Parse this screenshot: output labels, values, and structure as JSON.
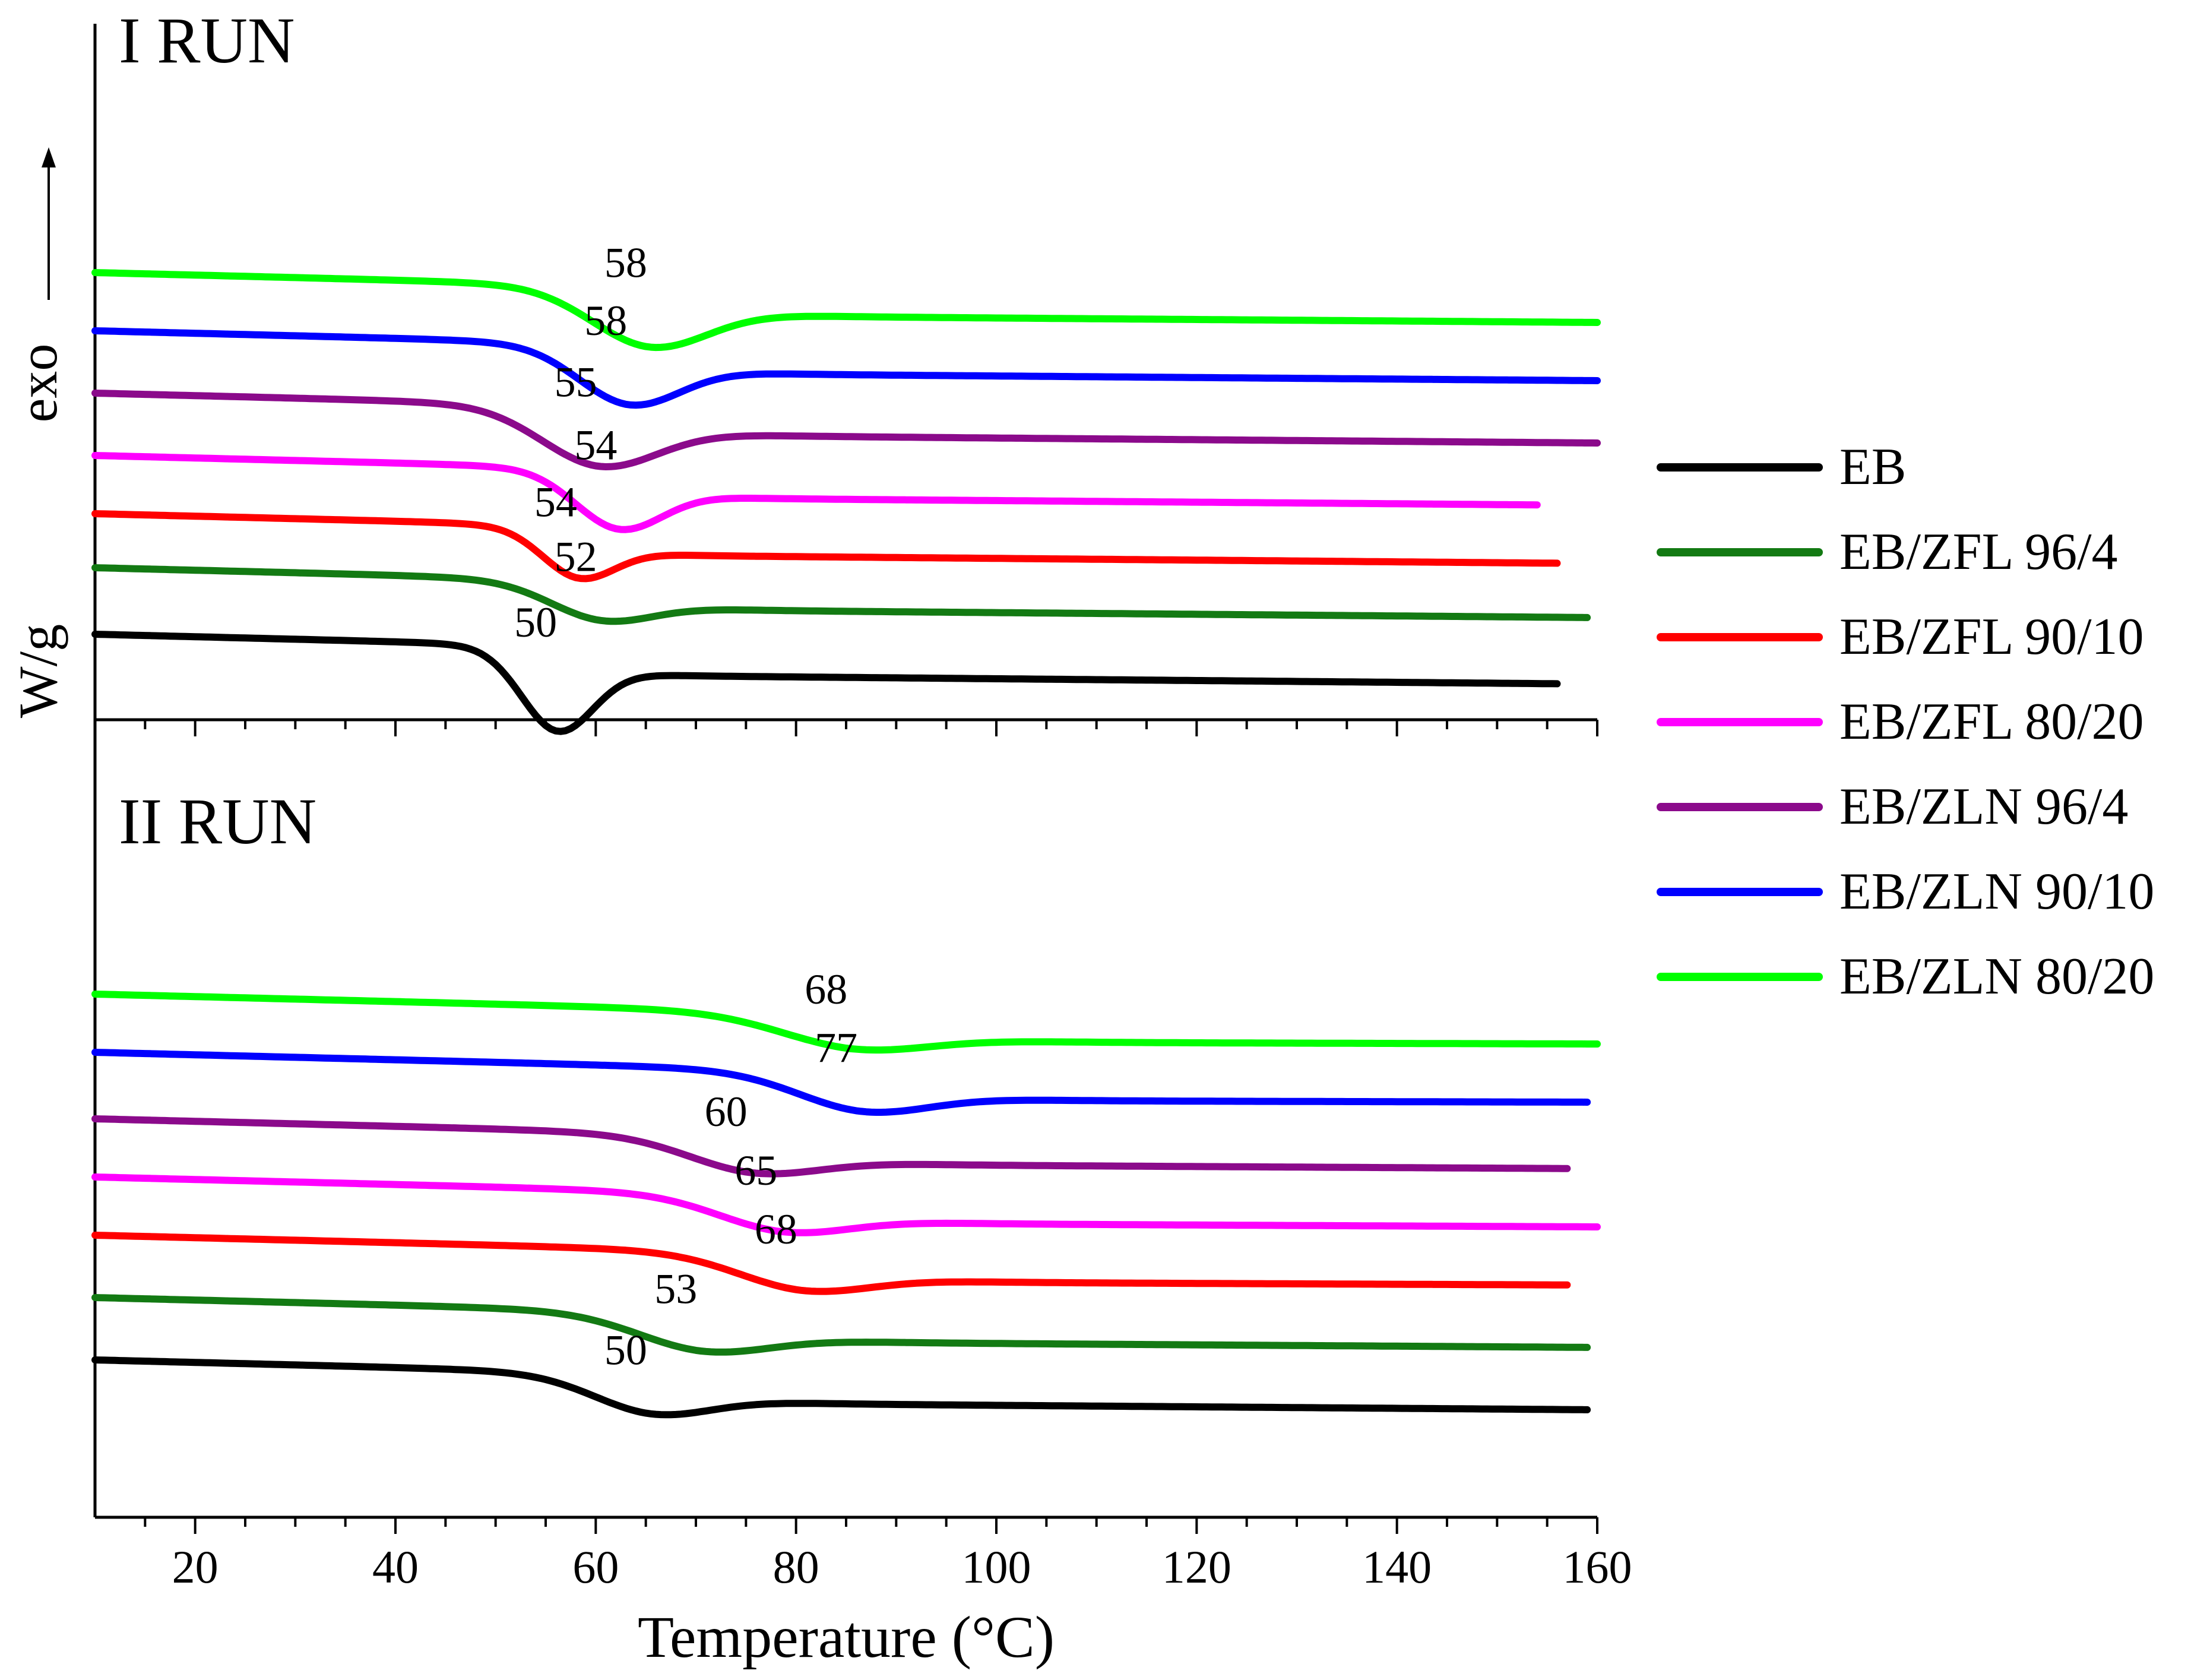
{
  "chart_data": {
    "type": "line",
    "title": "",
    "xlabel": "Temperature (°C)",
    "ylabel": "W/g",
    "exo_label": "exo",
    "xlim": [
      10,
      160
    ],
    "xticks": [
      20,
      40,
      60,
      80,
      100,
      120,
      140,
      160
    ],
    "series_names": [
      "EB",
      "EB/ZFL 96/4",
      "EB/ZFL 90/10",
      "EB/ZFL 80/20",
      "EB/ZLN 96/4",
      "EB/ZLN 90/10",
      "EB/ZLN 80/20"
    ],
    "colors": [
      "#000000",
      "#137a13",
      "#ff0000",
      "#ff00ff",
      "#8b0a8b",
      "#0000ff",
      "#00ff00"
    ],
    "panels": [
      {
        "name": "I RUN",
        "peaks": [
          "50",
          "52",
          "54",
          "54",
          "55",
          "58",
          "58"
        ],
        "peak_temps": [
          56,
          60,
          58,
          62,
          60,
          63,
          65
        ],
        "offsets": [
          -0.1,
          0.7,
          1.35,
          2.05,
          2.8,
          3.55,
          4.25
        ],
        "depths": [
          0.85,
          0.3,
          0.45,
          0.55,
          0.55,
          0.55,
          0.55
        ],
        "widths": [
          5,
          7,
          5,
          6,
          8,
          7,
          8
        ],
        "ends": [
          156,
          159,
          156,
          154,
          160,
          160,
          160
        ]
      },
      {
        "name": "II RUN",
        "peaks": [
          "50",
          "53",
          "68",
          "65",
          "60",
          "77",
          "68"
        ],
        "peak_temps": [
          65,
          70,
          80,
          78,
          75,
          86,
          85
        ],
        "offsets": [
          0.1,
          0.85,
          1.6,
          2.3,
          3.0,
          3.8,
          4.5
        ],
        "depths": [
          0.3,
          0.28,
          0.27,
          0.27,
          0.27,
          0.3,
          0.25
        ],
        "widths": [
          8,
          9,
          9,
          9,
          9,
          9,
          10
        ],
        "ends": [
          159,
          159,
          157,
          160,
          157,
          159,
          160
        ]
      }
    ]
  },
  "legend": {
    "items": [
      {
        "label": "EB",
        "color": "#000000"
      },
      {
        "label": "EB/ZFL 96/4",
        "color": "#137a13"
      },
      {
        "label": "EB/ZFL 90/10",
        "color": "#ff0000"
      },
      {
        "label": "EB/ZFL 80/20",
        "color": "#ff00ff"
      },
      {
        "label": "EB/ZLN 96/4",
        "color": "#8b0a8b"
      },
      {
        "label": "EB/ZLN 90/10",
        "color": "#0000ff"
      },
      {
        "label": "EB/ZLN 80/20",
        "color": "#00ff00"
      }
    ]
  }
}
